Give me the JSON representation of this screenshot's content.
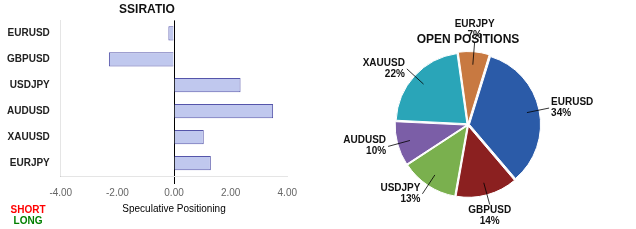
{
  "chart_data": [
    {
      "type": "bar",
      "title": "SSIRATIO",
      "orientation": "horizontal",
      "categories": [
        "EURJPY",
        "XAUUSD",
        "AUDUSD",
        "USDJPY",
        "GBPUSD",
        "EURUSD"
      ],
      "values": [
        1.3,
        1.05,
        3.5,
        2.35,
        -2.3,
        -0.2
      ],
      "color": "#c0c8ee",
      "xlim": [
        -4.0,
        4.0
      ],
      "xticks": [
        {
          "value": -4.0,
          "label": "-4.00"
        },
        {
          "value": -2.0,
          "label": "-2.00"
        },
        {
          "value": 0.0,
          "label": "0.00"
        },
        {
          "value": 2.0,
          "label": "2.00"
        },
        {
          "value": 4.0,
          "label": "4.00"
        }
      ],
      "xlabel": "Speculative Positioning",
      "annotations": [
        {
          "text": "SHORT",
          "color": "red"
        },
        {
          "text": "LONG",
          "color": "green"
        }
      ],
      "grid": false
    },
    {
      "type": "pie",
      "title": "OPEN POSITIONS",
      "categories": [
        "EURJPY",
        "EURUSD",
        "GBPUSD",
        "USDJPY",
        "AUDUSD",
        "XAUUSD"
      ],
      "values": [
        7,
        34,
        14,
        13,
        10,
        22
      ],
      "value_labels": [
        "7%",
        "34%",
        "14%",
        "13%",
        "10%",
        "22%"
      ],
      "colors": [
        "#c87941",
        "#2b5ba8",
        "#8b2020",
        "#7ab04e",
        "#7b5ea7",
        "#2aa5b8"
      ],
      "data_labels": true
    }
  ]
}
